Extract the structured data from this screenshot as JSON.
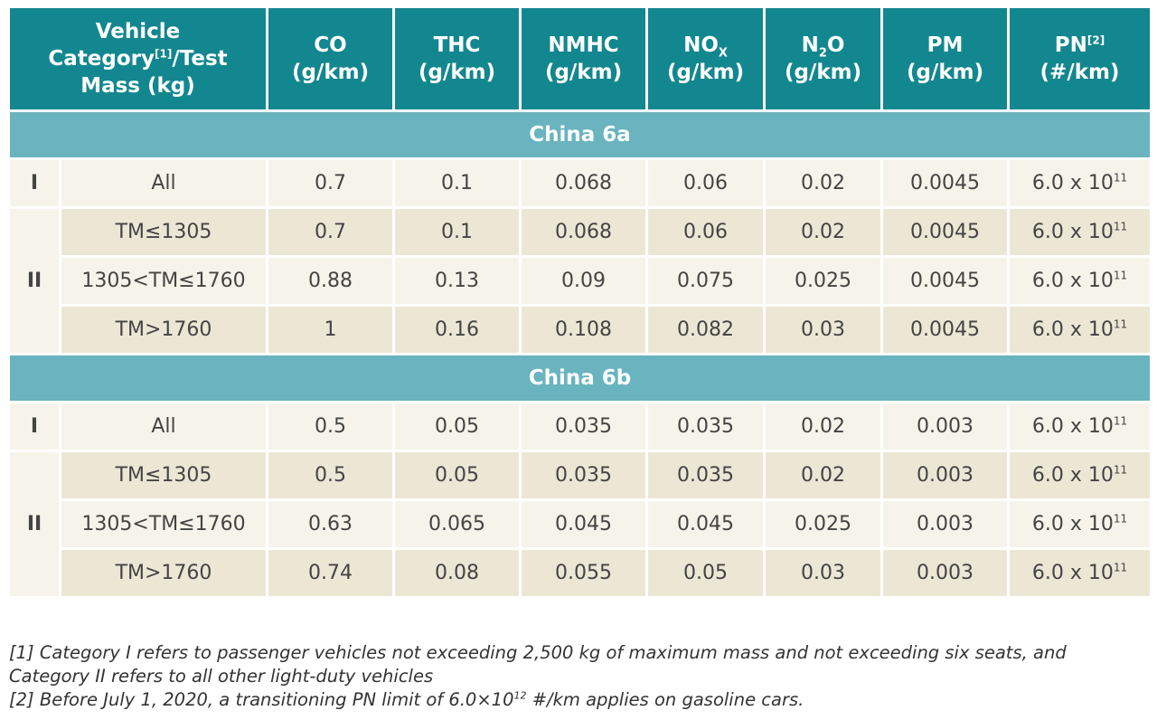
{
  "header": {
    "col_category_line1": "Vehicle",
    "col_category_line2a": "Category",
    "col_category_sup": "[1]",
    "col_category_line2b": "/Test",
    "col_category_line3": "Mass (kg)",
    "co": "CO",
    "thc": "THC",
    "nmhc": "NMHC",
    "nox": "NO",
    "nox_sub": "X",
    "n2o_a": "N",
    "n2o_sub": "2",
    "n2o_b": "O",
    "pm": "PM",
    "pn": "PN",
    "pn_sup": "[2]",
    "unit_gkm": "(g/km)",
    "unit_pn": "(#/km)"
  },
  "sections": [
    {
      "title": "China 6a",
      "rows": [
        {
          "category": "I",
          "mass": "All",
          "co": "0.7",
          "thc": "0.1",
          "nmhc": "0.068",
          "nox": "0.06",
          "n2o": "0.02",
          "pm": "0.0045",
          "pn_base": "6.0 x 10",
          "pn_exp": "11"
        },
        {
          "category": "II",
          "mass": "TM≤1305",
          "co": "0.7",
          "thc": "0.1",
          "nmhc": "0.068",
          "nox": "0.06",
          "n2o": "0.02",
          "pm": "0.0045",
          "pn_base": "6.0 x 10",
          "pn_exp": "11"
        },
        {
          "category": "",
          "mass": "1305<TM≤1760",
          "co": "0.88",
          "thc": "0.13",
          "nmhc": "0.09",
          "nox": "0.075",
          "n2o": "0.025",
          "pm": "0.0045",
          "pn_base": "6.0 x 10",
          "pn_exp": "11"
        },
        {
          "category": "",
          "mass": "TM>1760",
          "co": "1",
          "thc": "0.16",
          "nmhc": "0.108",
          "nox": "0.082",
          "n2o": "0.03",
          "pm": "0.0045",
          "pn_base": "6.0 x 10",
          "pn_exp": "11"
        }
      ]
    },
    {
      "title": "China 6b",
      "rows": [
        {
          "category": "I",
          "mass": "All",
          "co": "0.5",
          "thc": "0.05",
          "nmhc": "0.035",
          "nox": "0.035",
          "n2o": "0.02",
          "pm": "0.003",
          "pn_base": "6.0 x 10",
          "pn_exp": "11"
        },
        {
          "category": "II",
          "mass": "TM≤1305",
          "co": "0.5",
          "thc": "0.05",
          "nmhc": "0.035",
          "nox": "0.035",
          "n2o": "0.02",
          "pm": "0.003",
          "pn_base": "6.0 x 10",
          "pn_exp": "11"
        },
        {
          "category": "",
          "mass": "1305<TM≤1760",
          "co": "0.63",
          "thc": "0.065",
          "nmhc": "0.045",
          "nox": "0.045",
          "n2o": "0.025",
          "pm": "0.003",
          "pn_base": "6.0 x 10",
          "pn_exp": "11"
        },
        {
          "category": "",
          "mass": "TM>1760",
          "co": "0.74",
          "thc": "0.08",
          "nmhc": "0.055",
          "nox": "0.05",
          "n2o": "0.03",
          "pm": "0.003",
          "pn_base": "6.0 x 10",
          "pn_exp": "11"
        }
      ]
    }
  ],
  "footnotes": {
    "note1": "[1] Category I refers to passenger vehicles not exceeding 2,500 kg of maximum mass and not exceeding six seats, and Category II refers to all other light-duty vehicles",
    "note2_a": "[2] Before July 1, 2020, a transitioning PN limit of 6.0×10",
    "note2_sup": "12",
    "note2_b": " #/km applies on gasoline cars."
  },
  "colors": {
    "header_bg": "#13878f",
    "section_bg": "#69b4bf",
    "row_light": "#f6f4ea",
    "row_dark": "#ece7d5"
  }
}
